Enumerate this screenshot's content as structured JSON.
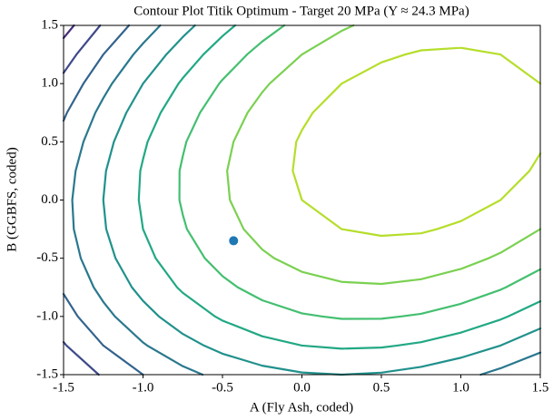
{
  "chart_data": {
    "type": "contour",
    "title": "Contour Plot Titik Optimum - Target 20 MPa (Y ≈ 24.3 MPa)",
    "xlabel": "A (Fly Ash, coded)",
    "ylabel": "B (GGBFS, coded)",
    "x": [
      -1.5,
      -1.25,
      -1,
      -0.75,
      -0.5,
      -0.25,
      0,
      0.25,
      0.5,
      0.75,
      1,
      1.25,
      1.5
    ],
    "y": [
      -1.5,
      -1.25,
      -1,
      -0.75,
      -0.5,
      -0.25,
      0,
      0.25,
      0.5,
      0.75,
      1,
      1.25,
      1.5
    ],
    "z": [
      [
        -218,
        -192,
        -170,
        -152,
        -138,
        -128,
        -122,
        -120,
        -122,
        -128,
        -138,
        -152,
        -170
      ],
      [
        -197,
        -170,
        -147,
        -128,
        -113,
        -102,
        -95,
        -92,
        -93,
        -98,
        -107,
        -120,
        -137
      ],
      [
        -180,
        -152,
        -128,
        -108,
        -92,
        -80,
        -72,
        -68,
        -68,
        -72,
        -80,
        -92,
        -108
      ],
      [
        -167,
        -138,
        -113,
        -92,
        -75,
        -62,
        -53,
        -48,
        -47,
        -50,
        -57,
        -68,
        -83
      ],
      [
        -158,
        -128,
        -102,
        -80,
        -62,
        -48,
        -38,
        -32,
        -30,
        -32,
        -38,
        -48,
        -62
      ],
      [
        -153,
        -122,
        -95,
        -72,
        -53,
        -38,
        -27,
        -20,
        -17,
        -18,
        -23,
        -32,
        -45
      ],
      [
        -152,
        -120,
        -92,
        -68,
        -48,
        -32,
        -20,
        -12,
        -8,
        -8,
        -12,
        -20,
        -32
      ],
      [
        -155,
        -122,
        -93,
        -68,
        -47,
        -30,
        -17,
        -8,
        -3,
        -2,
        -5,
        -12,
        -23
      ],
      [
        -162,
        -128,
        -98,
        -72,
        -50,
        -32,
        -18,
        -8,
        -2,
        0,
        -2,
        -8,
        -18
      ],
      [
        -173,
        -138,
        -107,
        -80,
        -57,
        -38,
        -23,
        -12,
        -5,
        -2,
        -3,
        -8,
        -17
      ],
      [
        -188,
        -152,
        -120,
        -92,
        -68,
        -48,
        -32,
        -20,
        -12,
        -8,
        -8,
        -12,
        -20
      ],
      [
        -207,
        -170,
        -137,
        -108,
        -83,
        -62,
        -45,
        -32,
        -23,
        -18,
        -17,
        -20,
        -27
      ],
      [
        -230,
        -192,
        -158,
        -128,
        -102,
        -80,
        -62,
        -48,
        -38,
        -32,
        -30,
        -32,
        -38
      ]
    ],
    "levels": [
      -220,
      -195,
      -170,
      -145,
      -120,
      -95,
      -70,
      -45,
      -20
    ],
    "level_colors": [
      "#472d7b",
      "#3e4a89",
      "#33638d",
      "#2a788e",
      "#21918c",
      "#22a884",
      "#44bf70",
      "#7ad151",
      "#b5de2b"
    ],
    "marker": {
      "x": -0.43,
      "y": -0.35,
      "color": "#1f77b4"
    },
    "xlim": [
      -1.5,
      1.5
    ],
    "ylim": [
      -1.5,
      1.5
    ],
    "xticks": [
      -1.5,
      {
        "value": -1,
        "label": "-1.0"
      },
      -0.5,
      {
        "value": 0,
        "label": "0.0"
      },
      0.5,
      {
        "value": 1,
        "label": "1.0"
      },
      1.5
    ],
    "yticks": [
      -1.5,
      {
        "value": -1,
        "label": "-1.0"
      },
      -0.5,
      {
        "value": 0,
        "label": "0.0"
      },
      0.5,
      {
        "value": 1,
        "label": "1.0"
      },
      1.5
    ]
  }
}
